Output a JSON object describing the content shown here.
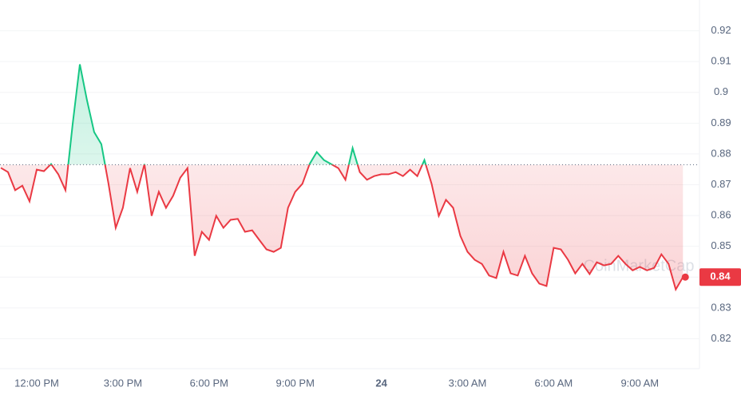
{
  "chart_data": {
    "type": "line",
    "watermark": "CoinMarketCap",
    "x": [
      "10:45 AM",
      "11:00 AM",
      "11:15 AM",
      "11:30 AM",
      "11:45 AM",
      "12:00 PM",
      "12:15 PM",
      "12:30 PM",
      "12:45 PM",
      "1:00 PM",
      "1:15 PM",
      "1:30 PM",
      "1:45 PM",
      "2:00 PM",
      "2:15 PM",
      "2:30 PM",
      "2:45 PM",
      "3:00 PM",
      "3:15 PM",
      "3:30 PM",
      "3:45 PM",
      "4:00 PM",
      "4:15 PM",
      "4:30 PM",
      "4:45 PM",
      "5:00 PM",
      "5:15 PM",
      "5:30 PM",
      "5:45 PM",
      "6:00 PM",
      "6:15 PM",
      "6:30 PM",
      "6:45 PM",
      "7:00 PM",
      "7:15 PM",
      "7:30 PM",
      "7:45 PM",
      "8:00 PM",
      "8:15 PM",
      "8:30 PM",
      "8:45 PM",
      "9:00 PM",
      "9:15 PM",
      "9:30 PM",
      "9:45 PM",
      "10:00 PM",
      "10:15 PM",
      "10:30 PM",
      "10:45 PM",
      "11:00 PM",
      "11:15 PM",
      "11:30 PM",
      "11:45 PM",
      "12:00 AM",
      "12:15 AM",
      "12:30 AM",
      "12:45 AM",
      "1:00 AM",
      "1:15 AM",
      "1:30 AM",
      "1:45 AM",
      "2:00 AM",
      "2:15 AM",
      "2:30 AM",
      "2:45 AM",
      "3:00 AM",
      "3:15 AM",
      "3:30 AM",
      "3:45 AM",
      "4:00 AM",
      "4:15 AM",
      "4:30 AM",
      "4:45 AM",
      "5:00 AM",
      "5:15 AM",
      "5:30 AM",
      "5:45 AM",
      "6:00 AM",
      "6:15 AM",
      "6:30 AM",
      "6:45 AM",
      "7:00 AM",
      "7:15 AM",
      "7:30 AM",
      "7:45 AM",
      "8:00 AM",
      "8:15 AM",
      "8:30 AM",
      "8:45 AM",
      "9:00 AM",
      "9:15 AM",
      "9:30 AM",
      "9:45 AM",
      "10:00 AM",
      "10:15 AM",
      "10:30 AM"
    ],
    "series": [
      {
        "name": "Price",
        "up_color": "#16c784",
        "down_color": "#ea3943",
        "values": [
          0.8755,
          0.8741,
          0.8682,
          0.8697,
          0.8646,
          0.8749,
          0.8744,
          0.8767,
          0.8734,
          0.8682,
          0.8897,
          0.9091,
          0.8975,
          0.8871,
          0.8832,
          0.8703,
          0.856,
          0.8625,
          0.8754,
          0.8677,
          0.8767,
          0.8599,
          0.8677,
          0.8625,
          0.8664,
          0.8723,
          0.8754,
          0.8469,
          0.8547,
          0.8521,
          0.8599,
          0.856,
          0.8586,
          0.8589,
          0.8547,
          0.8552,
          0.8521,
          0.849,
          0.8482,
          0.8495,
          0.8625,
          0.8677,
          0.8703,
          0.8767,
          0.8806,
          0.878,
          0.8767,
          0.8754,
          0.8716,
          0.8819,
          0.8741,
          0.8716,
          0.8728,
          0.8734,
          0.8734,
          0.8741,
          0.8728,
          0.8749,
          0.8728,
          0.878,
          0.8703,
          0.8599,
          0.8651,
          0.8625,
          0.8534,
          0.8482,
          0.8456,
          0.8443,
          0.8405,
          0.8397,
          0.8482,
          0.8412,
          0.8405,
          0.8469,
          0.8412,
          0.8379,
          0.8371,
          0.8495,
          0.849,
          0.8456,
          0.8412,
          0.8443,
          0.841,
          0.8448,
          0.8438,
          0.8443,
          0.8469,
          0.8443,
          0.8422,
          0.8433,
          0.8422,
          0.843,
          0.8474,
          0.8443,
          0.836,
          0.84
        ]
      }
    ],
    "reference": 0.8765,
    "current_price": 0.84,
    "ylim": [
      0.81,
      0.93
    ],
    "yticks": [
      0.82,
      0.83,
      0.84,
      0.85,
      0.86,
      0.87,
      0.88,
      0.89,
      0.9,
      0.91,
      0.92
    ],
    "xticks": [
      "12:00 PM",
      "3:00 PM",
      "6:00 PM",
      "9:00 PM",
      {
        "value": "12:00 AM",
        "label": "24"
      },
      "3:00 AM",
      "6:00 AM",
      "9:00 AM"
    ],
    "grid": true
  }
}
